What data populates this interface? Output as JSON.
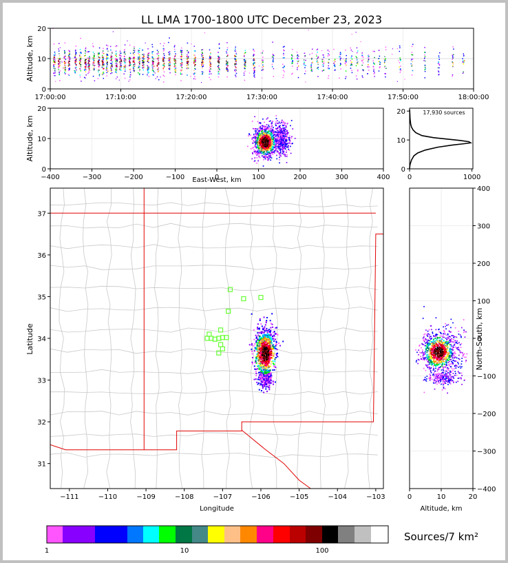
{
  "title": "LL LMA 1700-1800 UTC December 23, 2023",
  "chart_data": [
    {
      "panel": "time-altitude",
      "type": "scatter",
      "ylabel": "Altitude, km",
      "ylim": [
        0,
        20
      ],
      "yticks": [
        "0",
        "10",
        "20"
      ],
      "xticks": [
        "17:00:00",
        "17:10:00",
        "17:20:00",
        "17:30:00",
        "17:40:00",
        "17:50:00",
        "18:00:00"
      ],
      "xlim_minutes": [
        0,
        60
      ],
      "flash_times_minutes": [
        0.5,
        1.2,
        2.0,
        2.6,
        3.5,
        4.2,
        4.9,
        5.4,
        6.1,
        6.8,
        7.4,
        8.0,
        8.6,
        9.3,
        9.9,
        10.5,
        11.2,
        11.8,
        12.5,
        13.1,
        13.8,
        14.5,
        15.2,
        16.0,
        16.8,
        17.6,
        18.5,
        19.4,
        20.4,
        21.5,
        22.6,
        23.8,
        25.0,
        26.2,
        27.5,
        28.8,
        30.0,
        31.5,
        33.0,
        34.2,
        35.0,
        36.0,
        37.0,
        37.8,
        38.6,
        39.4,
        40.2,
        41.0,
        41.8,
        42.6,
        43.4,
        44.2,
        45.0,
        45.8,
        46.6,
        47.4,
        49.5,
        51.2,
        53.0,
        55.0,
        57.0,
        58.5
      ],
      "altitude_center_km": 9
    },
    {
      "panel": "east-west-altitude",
      "type": "heatmap",
      "xlabel": "East-West, km",
      "ylabel": "Altitude, km",
      "xlim": [
        -400,
        400
      ],
      "ylim": [
        0,
        20
      ],
      "xticks": [
        "−400",
        "−300",
        "−200",
        "−100",
        "0",
        "100",
        "200",
        "300",
        "400"
      ],
      "yticks": [
        "0",
        "10",
        "20"
      ],
      "core_km": [
        115,
        9
      ]
    },
    {
      "panel": "altitude-histogram",
      "type": "line",
      "annotation": "17,930 sources",
      "xlim": [
        0,
        1000
      ],
      "ylim": [
        0,
        21
      ],
      "xticks": [
        "0",
        "1000"
      ],
      "yticks": [
        "0",
        "10",
        "20"
      ],
      "profile": [
        [
          0,
          0
        ],
        [
          2,
          0.5
        ],
        [
          8,
          1.5
        ],
        [
          30,
          3
        ],
        [
          70,
          4.5
        ],
        [
          130,
          5.5
        ],
        [
          250,
          6.5
        ],
        [
          450,
          7.5
        ],
        [
          680,
          8.2
        ],
        [
          880,
          8.7
        ],
        [
          980,
          9.0
        ],
        [
          950,
          9.4
        ],
        [
          820,
          9.8
        ],
        [
          600,
          10.3
        ],
        [
          380,
          10.8
        ],
        [
          200,
          11.5
        ],
        [
          100,
          12.5
        ],
        [
          55,
          13.5
        ],
        [
          30,
          14.5
        ],
        [
          18,
          15.5
        ],
        [
          12,
          16.5
        ],
        [
          8,
          17.5
        ],
        [
          5,
          18.5
        ],
        [
          3,
          19.5
        ],
        [
          1,
          20.5
        ]
      ]
    },
    {
      "panel": "plan-view-map",
      "type": "scatter",
      "xlabel": "Longitude",
      "ylabel": "Latitude",
      "xlim": [
        -111.5,
        -102.8
      ],
      "ylim": [
        30.4,
        37.6
      ],
      "xticks": [
        "−111",
        "−110",
        "−109",
        "−108",
        "−107",
        "−106",
        "−105",
        "−104",
        "−103"
      ],
      "yticks": [
        "31",
        "32",
        "33",
        "34",
        "35",
        "36",
        "37"
      ],
      "storm_center": [
        -105.9,
        33.75
      ],
      "stations": [
        [
          -106.8,
          35.17
        ],
        [
          -106.45,
          34.95
        ],
        [
          -106.0,
          34.98
        ],
        [
          -106.85,
          34.65
        ],
        [
          -107.05,
          34.2
        ],
        [
          -107.35,
          34.1
        ],
        [
          -107.4,
          34.0
        ],
        [
          -107.3,
          34.0
        ],
        [
          -107.2,
          33.98
        ],
        [
          -107.1,
          34.0
        ],
        [
          -107.0,
          34.02
        ],
        [
          -106.9,
          34.02
        ],
        [
          -107.05,
          33.85
        ],
        [
          -107.0,
          33.75
        ],
        [
          -107.1,
          33.65
        ]
      ],
      "station_color": "#66ff33",
      "state_border_color": "#e00000"
    },
    {
      "panel": "altitude-north-south",
      "type": "heatmap",
      "xlabel": "Altitude, km",
      "ylabel": "North-South, km",
      "xlim": [
        0,
        20
      ],
      "ylim": [
        -400,
        400
      ],
      "xticks": [
        "0",
        "10",
        "20"
      ],
      "yticks": [
        "−400",
        "−300",
        "−200",
        "−100",
        "0",
        "100",
        "200",
        "300",
        "400"
      ],
      "core_km": [
        9,
        -35
      ]
    }
  ],
  "colorbar": {
    "label": "Sources/7 km²",
    "ticks": [
      "1",
      "10",
      "100"
    ],
    "colors": [
      "#ff55ff",
      "#8800ff",
      "#0000ff",
      "#0077ff",
      "#00ffff",
      "#00ff00",
      "#007744",
      "#448888",
      "#ffff00",
      "#ffc088",
      "#ff8800",
      "#ff0088",
      "#ff0000",
      "#bb0000",
      "#7f0000",
      "#000000",
      "#808080",
      "#c0c0c0",
      "#ffffff"
    ],
    "widths": [
      23,
      47,
      47,
      23,
      23,
      24,
      24,
      23,
      24,
      23,
      24,
      24,
      24,
      23,
      24,
      23,
      24,
      24,
      25
    ]
  }
}
